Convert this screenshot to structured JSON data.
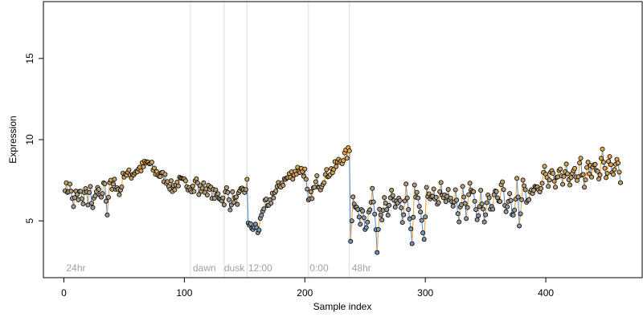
{
  "chart_data": {
    "type": "scatter",
    "title": "",
    "xlabel": "Sample index",
    "ylabel": "Expression",
    "xlim": [
      -17,
      480
    ],
    "ylim": [
      1.5,
      18.5
    ],
    "x_ticks": [
      0,
      100,
      200,
      300,
      400
    ],
    "y_ticks": [
      5,
      10,
      15
    ],
    "grid": false,
    "legend": "none",
    "colors": {
      "up_segment": "#f0a838",
      "down_segment": "#5b8fd6",
      "gap_segment": "#a0a0a0",
      "guide_line": "#dcdcdc",
      "point_stroke": "#000000",
      "point_fill_start": "#5b8fd6",
      "point_fill_end": "#f0a838",
      "annotation_text": "#a0a0a0"
    },
    "vertical_lines": [
      105,
      133,
      152,
      203,
      237
    ],
    "annotations": [
      {
        "x": 2,
        "text": "24hr"
      },
      {
        "x": 107,
        "text": "dawn"
      },
      {
        "x": 133,
        "text": "dusk"
      },
      {
        "x": 153,
        "text": "12:00"
      },
      {
        "x": 204,
        "text": "0:00"
      },
      {
        "x": 239,
        "text": "48hr"
      }
    ],
    "anchors": {
      "x": [
        1,
        3,
        5,
        7,
        8,
        10,
        12,
        14,
        16,
        18,
        20,
        22,
        24,
        26,
        28,
        30,
        32,
        34,
        36,
        38,
        40,
        42,
        44,
        46,
        50,
        55,
        60,
        65,
        70,
        75,
        80,
        85,
        90,
        95,
        100,
        105,
        108,
        110,
        112,
        115,
        120,
        125,
        130,
        133,
        135,
        138,
        140,
        143,
        146,
        150,
        152,
        153,
        155,
        157,
        159,
        161,
        163,
        165,
        168,
        170,
        173,
        176,
        180,
        185,
        190,
        195,
        200,
        203,
        206,
        208,
        210,
        213,
        216,
        220,
        224,
        228,
        232,
        235,
        237,
        238,
        240,
        243,
        246,
        248,
        250,
        253,
        256,
        259,
        260,
        262,
        264,
        266,
        269,
        272,
        275,
        278,
        281,
        284,
        287,
        289,
        291,
        294,
        297,
        299,
        301,
        304,
        307,
        310,
        313,
        316,
        319,
        322,
        325,
        328,
        331,
        334,
        337,
        340,
        343,
        346,
        349,
        352,
        355,
        358,
        361,
        364,
        367,
        370,
        373,
        376,
        378,
        381,
        384,
        387,
        390,
        393,
        396,
        399,
        402,
        405,
        408,
        411,
        414,
        417,
        420,
        423,
        426,
        429,
        432,
        435,
        438,
        441,
        444,
        447,
        450,
        453,
        456,
        459,
        462
      ],
      "y": [
        7.2,
        6.9,
        7.1,
        6.5,
        5.7,
        6.8,
        6.2,
        7.0,
        5.9,
        7.3,
        6.0,
        6.9,
        5.8,
        6.4,
        7.0,
        6.3,
        6.8,
        7.4,
        5.5,
        7.5,
        6.9,
        7.3,
        7.2,
        6.6,
        8.0,
        7.8,
        8.1,
        8.3,
        8.6,
        8.1,
        7.8,
        7.6,
        7.0,
        7.4,
        7.3,
        7.2,
        7.0,
        7.6,
        6.8,
        7.1,
        6.9,
        6.6,
        6.5,
        6.3,
        6.9,
        6.0,
        6.5,
        6.2,
        6.6,
        6.8,
        7.4,
        4.6,
        5.0,
        4.2,
        4.9,
        4.1,
        5.0,
        5.8,
        6.0,
        5.7,
        6.6,
        6.8,
        7.3,
        7.6,
        7.9,
        8.2,
        8.0,
        6.0,
        6.7,
        7.0,
        7.5,
        7.2,
        7.7,
        8.0,
        8.2,
        8.6,
        8.9,
        9.1,
        9.3,
        4.0,
        6.4,
        6.0,
        4.8,
        5.9,
        4.6,
        5.6,
        6.7,
        4.5,
        2.8,
        5.5,
        5.0,
        6.5,
        5.3,
        6.8,
        5.6,
        6.4,
        5.0,
        7.0,
        4.8,
        3.8,
        7.0,
        6.2,
        5.0,
        3.6,
        6.8,
        6.4,
        6.9,
        5.8,
        7.1,
        6.3,
        7.0,
        5.9,
        6.6,
        5.2,
        6.9,
        5.4,
        7.0,
        6.6,
        5.0,
        6.8,
        5.1,
        6.5,
        5.6,
        6.9,
        6.0,
        7.4,
        5.3,
        6.4,
        5.2,
        7.3,
        5.0,
        7.2,
        6.3,
        6.8,
        7.0,
        7.4,
        6.9,
        8.2,
        7.2,
        7.9,
        7.0,
        8.4,
        7.3,
        8.5,
        7.5,
        8.3,
        7.8,
        8.6,
        7.2,
        8.4,
        7.9,
        8.8,
        7.4,
        9.2,
        7.8,
        8.7,
        7.6,
        8.6,
        7.5
      ]
    },
    "series": [
      {
        "n": 462,
        "marker": "circle",
        "connect": "line-segments"
      }
    ]
  }
}
